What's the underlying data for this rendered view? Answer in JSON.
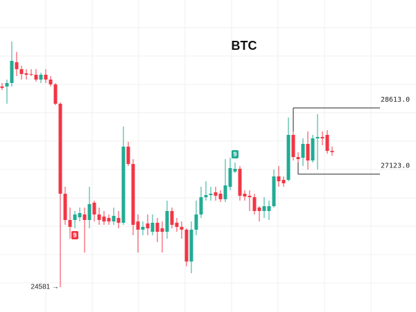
{
  "chart_data": {
    "type": "candlestick",
    "title": "BTC",
    "ylim": [
      24020,
      31042
    ],
    "up_color": "#22ab94",
    "down_color": "#f23645",
    "open": [
      29096,
      29096,
      29174,
      29641,
      29485,
      29392,
      29376,
      29360,
      29251,
      29360,
      29251,
      29143,
      28707,
      26682,
      26091,
      26091,
      26153,
      26215,
      26091,
      26480,
      26215,
      26168,
      26137,
      26058,
      26137,
      26028,
      27741,
      27352,
      26058,
      25873,
      26013,
      25826,
      26028,
      25904,
      25826,
      26293,
      26028,
      25935,
      25873,
      25157,
      25873,
      26215,
      26604,
      26651,
      26714,
      26682,
      26558,
      26838,
      27181,
      27243,
      26682,
      26636,
      26604,
      26371,
      26293,
      26293,
      26402,
      27072,
      26994,
      26994,
      28006,
      27508,
      27492,
      27803,
      27430,
      27928,
      27959,
      28006,
      27646
    ],
    "high": [
      29174,
      29251,
      30108,
      29874,
      29563,
      29485,
      29485,
      29485,
      29407,
      29485,
      29329,
      29174,
      28738,
      26838,
      26371,
      26293,
      26371,
      26371,
      26838,
      26527,
      26371,
      26293,
      26215,
      26371,
      26293,
      28193,
      27850,
      27461,
      26215,
      26058,
      26215,
      26215,
      26137,
      26058,
      26527,
      26371,
      26137,
      26058,
      25904,
      26058,
      26527,
      26838,
      26963,
      26838,
      26838,
      26760,
      27461,
      27492,
      27383,
      27305,
      26760,
      26760,
      26682,
      26402,
      26604,
      26527,
      27227,
      27305,
      27072,
      28395,
      28551,
      27617,
      27928,
      28084,
      28006,
      28473,
      28084,
      28115,
      27741
    ],
    "low": [
      29018,
      28707,
      29096,
      29329,
      29251,
      29251,
      29329,
      29205,
      29174,
      29174,
      29096,
      28675,
      24581,
      25982,
      25670,
      25904,
      26058,
      25359,
      25904,
      26058,
      25982,
      25982,
      25982,
      25982,
      25904,
      25982,
      27305,
      25748,
      25359,
      25748,
      25748,
      25748,
      25592,
      25359,
      25670,
      25904,
      25826,
      25670,
      25047,
      24892,
      25748,
      26137,
      26527,
      26527,
      26527,
      26495,
      26495,
      26760,
      27150,
      26527,
      26527,
      26293,
      26215,
      26058,
      26137,
      26091,
      26371,
      26838,
      26838,
      26963,
      27430,
      27383,
      27305,
      27227,
      27383,
      27227,
      27772,
      27586,
      27539
    ],
    "close": [
      29065,
      29174,
      29672,
      29485,
      29376,
      29360,
      29360,
      29251,
      29360,
      29251,
      29143,
      28707,
      26682,
      26091,
      25935,
      26215,
      26247,
      26091,
      26449,
      26215,
      26091,
      26058,
      26058,
      26184,
      26028,
      27741,
      27352,
      25982,
      25873,
      25935,
      25904,
      26028,
      25826,
      25826,
      26293,
      25982,
      25935,
      25873,
      25157,
      25873,
      26215,
      26604,
      26651,
      26682,
      26636,
      26558,
      26869,
      27259,
      27243,
      26636,
      26620,
      26604,
      26293,
      26293,
      26402,
      26402,
      27072,
      26963,
      26917,
      28006,
      27508,
      27461,
      27803,
      27430,
      27928,
      27959,
      27928,
      27646,
      27617
    ],
    "levels": [
      {
        "value": 28613,
        "label": "28613.0",
        "index": 60
      },
      {
        "value": 27123,
        "label": "27123.0",
        "index": 61
      }
    ],
    "badges": [
      {
        "text": "9",
        "index": 15,
        "color": "#f23645"
      },
      {
        "text": "9",
        "index": 48,
        "color": "#22ab94"
      }
    ],
    "low_annotation": {
      "value": 24581,
      "label": "24581 →",
      "index": 12
    }
  }
}
